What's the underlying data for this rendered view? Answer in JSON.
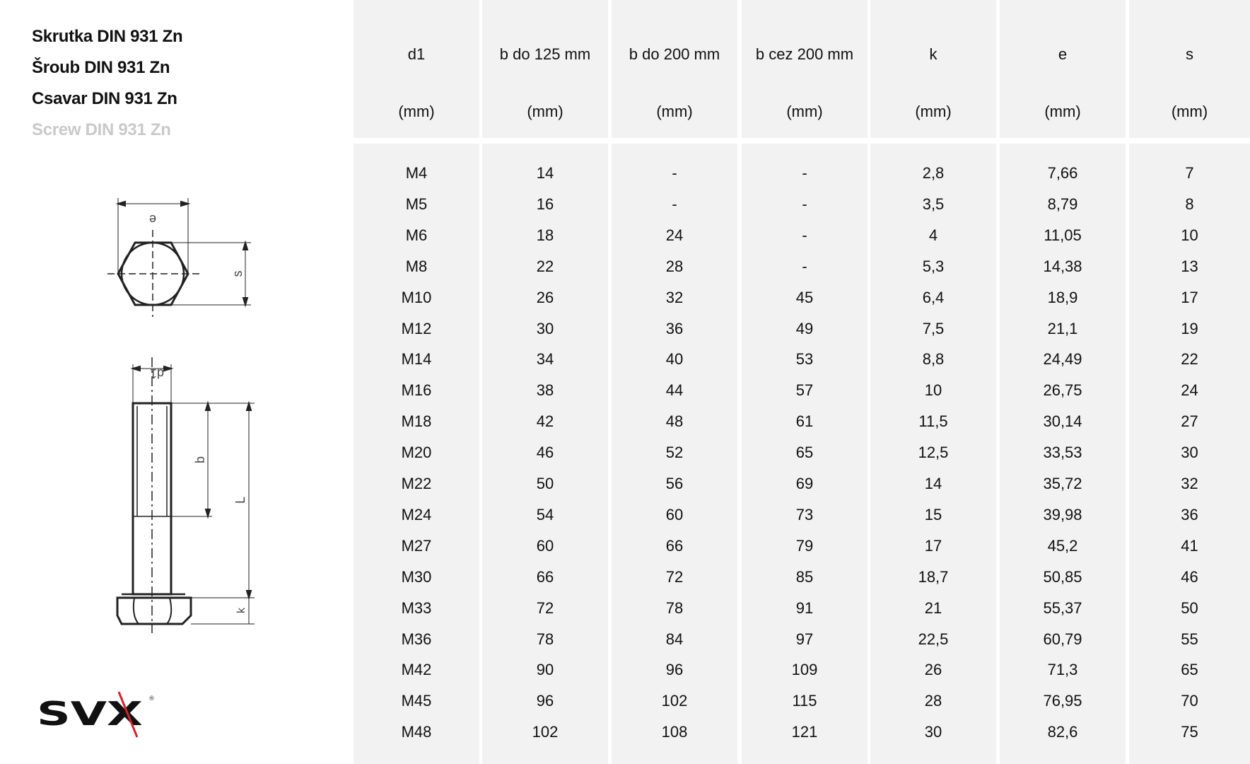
{
  "titles": [
    "Skrutka DIN 931 Zn",
    "Šroub DIN 931 Zn",
    "Csavar DIN 931 Zn",
    "Screw DIN 931 Zn"
  ],
  "drawing_labels": {
    "e": "e",
    "s": "s",
    "d1": "d1",
    "b": "b",
    "L": "L",
    "k": "k"
  },
  "logo": {
    "text": "SVX",
    "accent": "#d2232a"
  },
  "table": {
    "headers": [
      {
        "name": "d1",
        "unit": "(mm)"
      },
      {
        "name": "b do 125 mm",
        "unit": "(mm)"
      },
      {
        "name": "b do 200 mm",
        "unit": "(mm)"
      },
      {
        "name": "b cez 200 mm",
        "unit": "(mm)"
      },
      {
        "name": "k",
        "unit": "(mm)"
      },
      {
        "name": "e",
        "unit": "(mm)"
      },
      {
        "name": "s",
        "unit": "(mm)"
      }
    ],
    "rows": [
      [
        "M4",
        "14",
        "-",
        "-",
        "2,8",
        "7,66",
        "7"
      ],
      [
        "M5",
        "16",
        "-",
        "-",
        "3,5",
        "8,79",
        "8"
      ],
      [
        "M6",
        "18",
        "24",
        "-",
        "4",
        "11,05",
        "10"
      ],
      [
        "M8",
        "22",
        "28",
        "-",
        "5,3",
        "14,38",
        "13"
      ],
      [
        "M10",
        "26",
        "32",
        "45",
        "6,4",
        "18,9",
        "17"
      ],
      [
        "M12",
        "30",
        "36",
        "49",
        "7,5",
        "21,1",
        "19"
      ],
      [
        "M14",
        "34",
        "40",
        "53",
        "8,8",
        "24,49",
        "22"
      ],
      [
        "M16",
        "38",
        "44",
        "57",
        "10",
        "26,75",
        "24"
      ],
      [
        "M18",
        "42",
        "48",
        "61",
        "11,5",
        "30,14",
        "27"
      ],
      [
        "M20",
        "46",
        "52",
        "65",
        "12,5",
        "33,53",
        "30"
      ],
      [
        "M22",
        "50",
        "56",
        "69",
        "14",
        "35,72",
        "32"
      ],
      [
        "M24",
        "54",
        "60",
        "73",
        "15",
        "39,98",
        "36"
      ],
      [
        "M27",
        "60",
        "66",
        "79",
        "17",
        "45,2",
        "41"
      ],
      [
        "M30",
        "66",
        "72",
        "85",
        "18,7",
        "50,85",
        "46"
      ],
      [
        "M33",
        "72",
        "78",
        "91",
        "21",
        "55,37",
        "50"
      ],
      [
        "M36",
        "78",
        "84",
        "97",
        "22,5",
        "60,79",
        "55"
      ],
      [
        "M42",
        "90",
        "96",
        "109",
        "26",
        "71,3",
        "65"
      ],
      [
        "M45",
        "96",
        "102",
        "115",
        "28",
        "76,95",
        "70"
      ],
      [
        "M48",
        "102",
        "108",
        "121",
        "30",
        "82,6",
        "75"
      ]
    ]
  }
}
